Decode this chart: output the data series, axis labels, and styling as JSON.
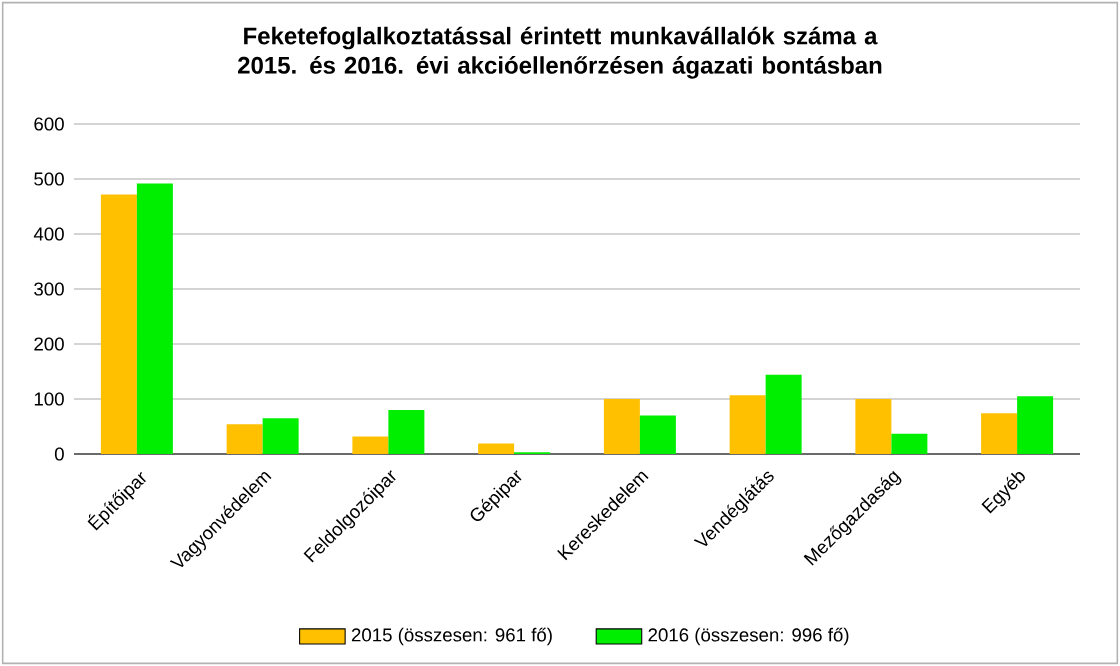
{
  "chart_data": {
    "type": "bar",
    "title": "Feketefoglalkoztatással érintett munkavállalók száma a 2015. és 2016. évi akcióellenőrzésen ágazati bontásban",
    "categories": [
      "Építőipar",
      "Vagyonvédelem",
      "Feldolgozóipar",
      "Gépipar",
      "Kereskedelem",
      "Vendéglátás",
      "Mezőgazdaság",
      "Egyéb"
    ],
    "series": [
      {
        "name": "2015 (összesen: 961 fő)",
        "color": "#ffc000",
        "values": [
          472,
          54,
          32,
          19,
          100,
          107,
          100,
          74
        ]
      },
      {
        "name": "2016 (összesen: 996 fő)",
        "color": "#00ee00",
        "values": [
          492,
          65,
          80,
          3,
          70,
          144,
          37,
          105
        ]
      }
    ],
    "ylim": [
      0,
      600
    ],
    "yticks": [
      0,
      100,
      200,
      300,
      400,
      500,
      600
    ],
    "grid": "y",
    "legend": "bottom"
  }
}
